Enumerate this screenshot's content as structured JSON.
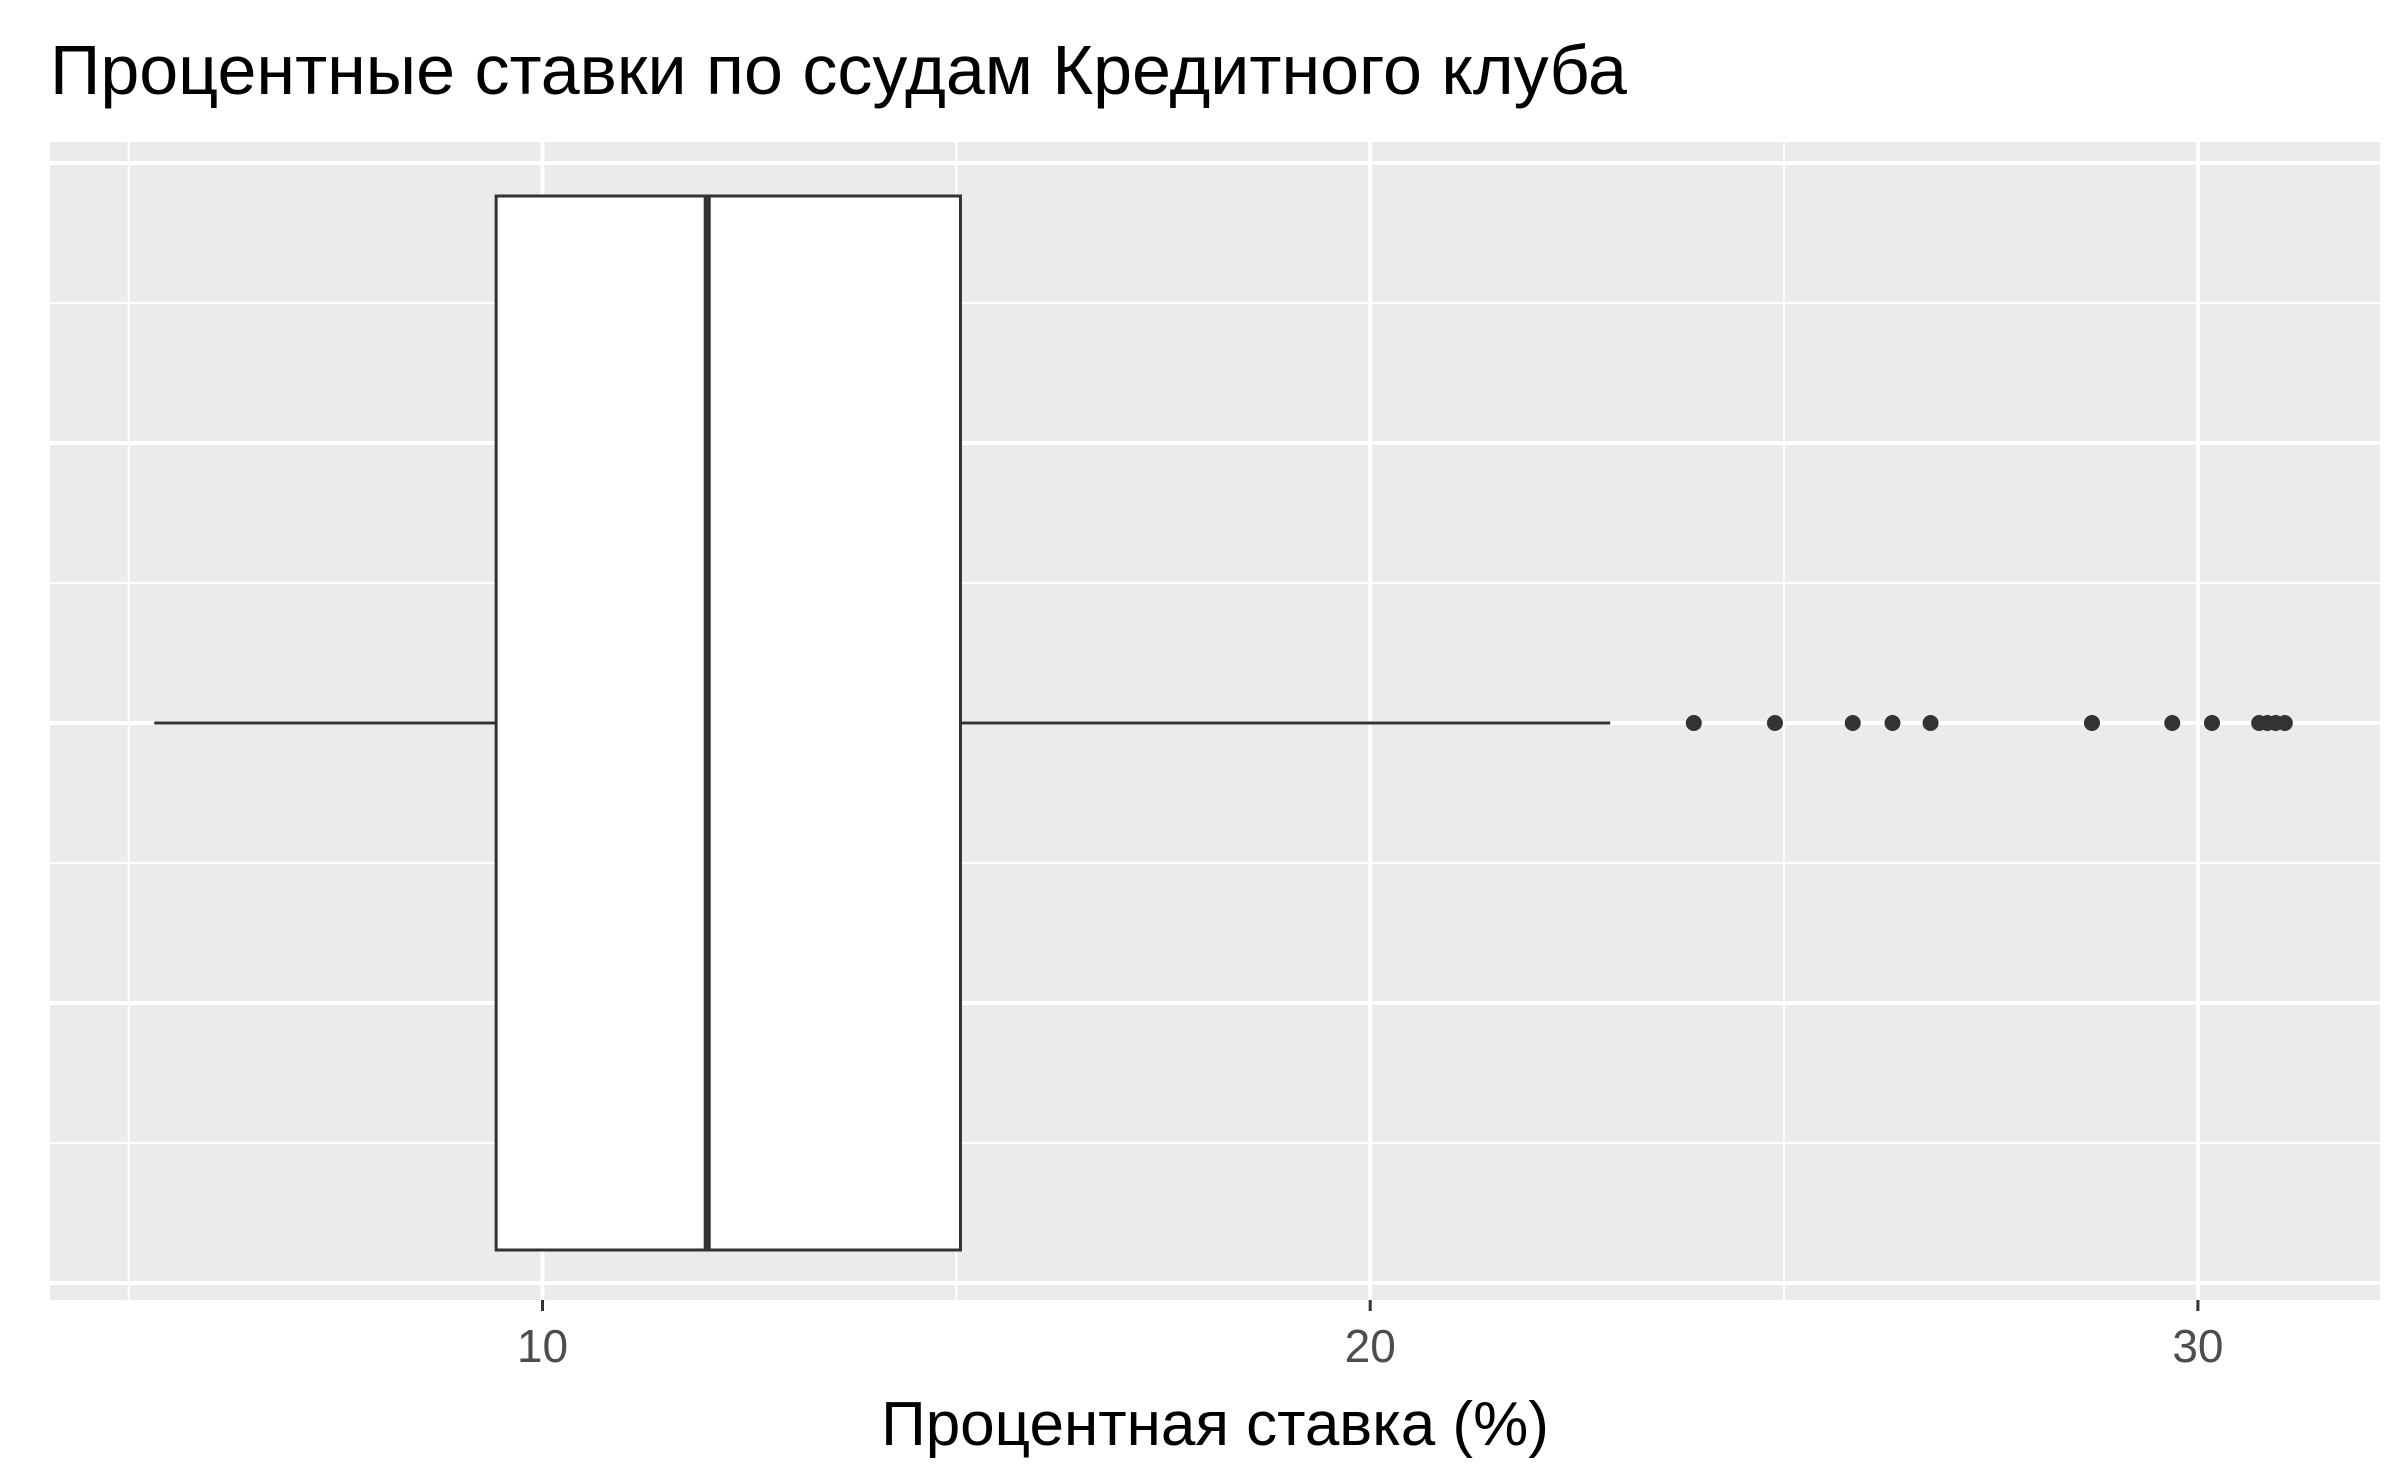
{
  "chart_data": {
    "type": "boxplot",
    "title": "Процентные ставки по ссудам Кредитного клуба",
    "xlabel": "Процентная ставка (%)",
    "ylabel": "",
    "orientation": "horizontal",
    "xlim": [
      4.05,
      32.2
    ],
    "x_ticks": [
      10,
      20,
      30
    ],
    "x_tick_labels": [
      "10",
      "20",
      "30"
    ],
    "grid": true,
    "box": {
      "whisker_low": 5.31,
      "q1": 9.44,
      "median": 11.99,
      "q3": 15.05,
      "whisker_high": 22.9
    },
    "outliers": [
      23.91,
      24.89,
      25.83,
      26.31,
      26.77,
      28.72,
      29.69,
      30.17,
      30.74,
      30.84,
      30.94,
      31.05
    ]
  },
  "colors": {
    "panel_background": "#ebebeb",
    "grid_major": "#ffffff",
    "box_fill": "#ffffff",
    "box_stroke": "#333333",
    "outlier": "#333333",
    "tick_label": "#4d4d4d",
    "tick_mark": "#333333"
  }
}
